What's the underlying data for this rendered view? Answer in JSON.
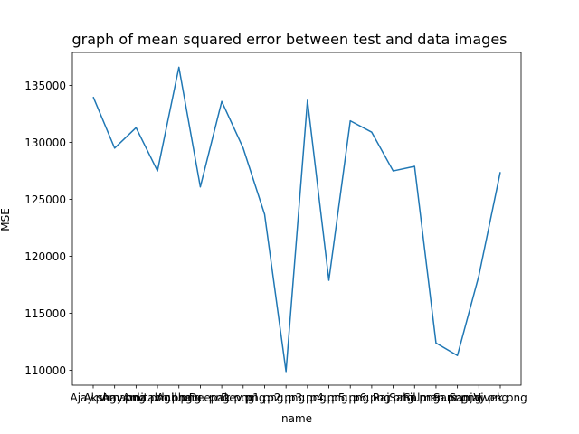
{
  "chart_data": {
    "type": "line",
    "title": "graph of mean squared error between test and data images",
    "xlabel": "name",
    "ylabel": "MSE",
    "ylim": [
      108700,
      137900
    ],
    "yticks": [
      110000,
      115000,
      120000,
      125000,
      130000,
      135000
    ],
    "ytick_labels": [
      "110000",
      "115000",
      "120000",
      "125000",
      "130000",
      "135000"
    ],
    "grid": false,
    "line_color": "#1f77b4",
    "categories": [
      "Ajay.png",
      "Akshay.png",
      "Amanda.png",
      "Amitabh.png",
      "Anil.png",
      "bhanu.png",
      "Deepak.png",
      "Dev.png",
      "p1.png",
      "p2.png",
      "p3.png",
      "p4.png",
      "p5.png",
      "p6.png",
      "Raj.png",
      "Sahil.png",
      "Salman.png",
      "Sam.png",
      "Sanjay.png",
      "Vivek.png"
    ],
    "values": [
      134000,
      129500,
      131300,
      127500,
      136600,
      126100,
      133600,
      129500,
      123700,
      109900,
      133700,
      117900,
      131900,
      130900,
      127500,
      127900,
      112400,
      111300,
      118300,
      127400
    ]
  }
}
